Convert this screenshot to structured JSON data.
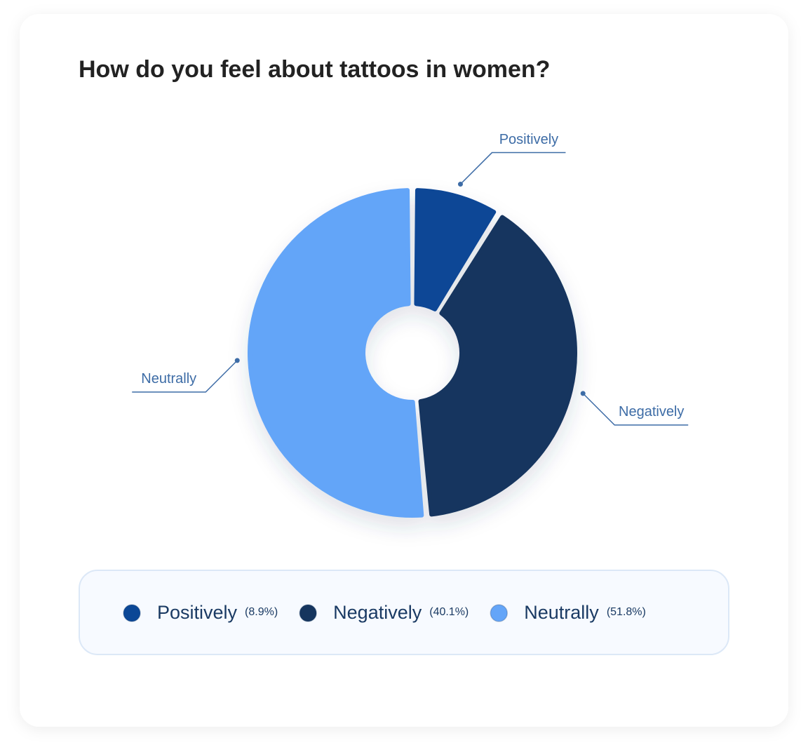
{
  "chart_data": {
    "type": "donut",
    "title": "How do you feel about tattoos in women?",
    "categories": [
      "Positively",
      "Negatively",
      "Neutrally"
    ],
    "values": [
      8.9,
      40.1,
      51.8
    ],
    "value_labels": [
      "(8.9%)",
      "(40.1%)",
      "(51.8%)"
    ],
    "colors": [
      "#0b4796",
      "#16355e",
      "#64a5f8"
    ]
  }
}
